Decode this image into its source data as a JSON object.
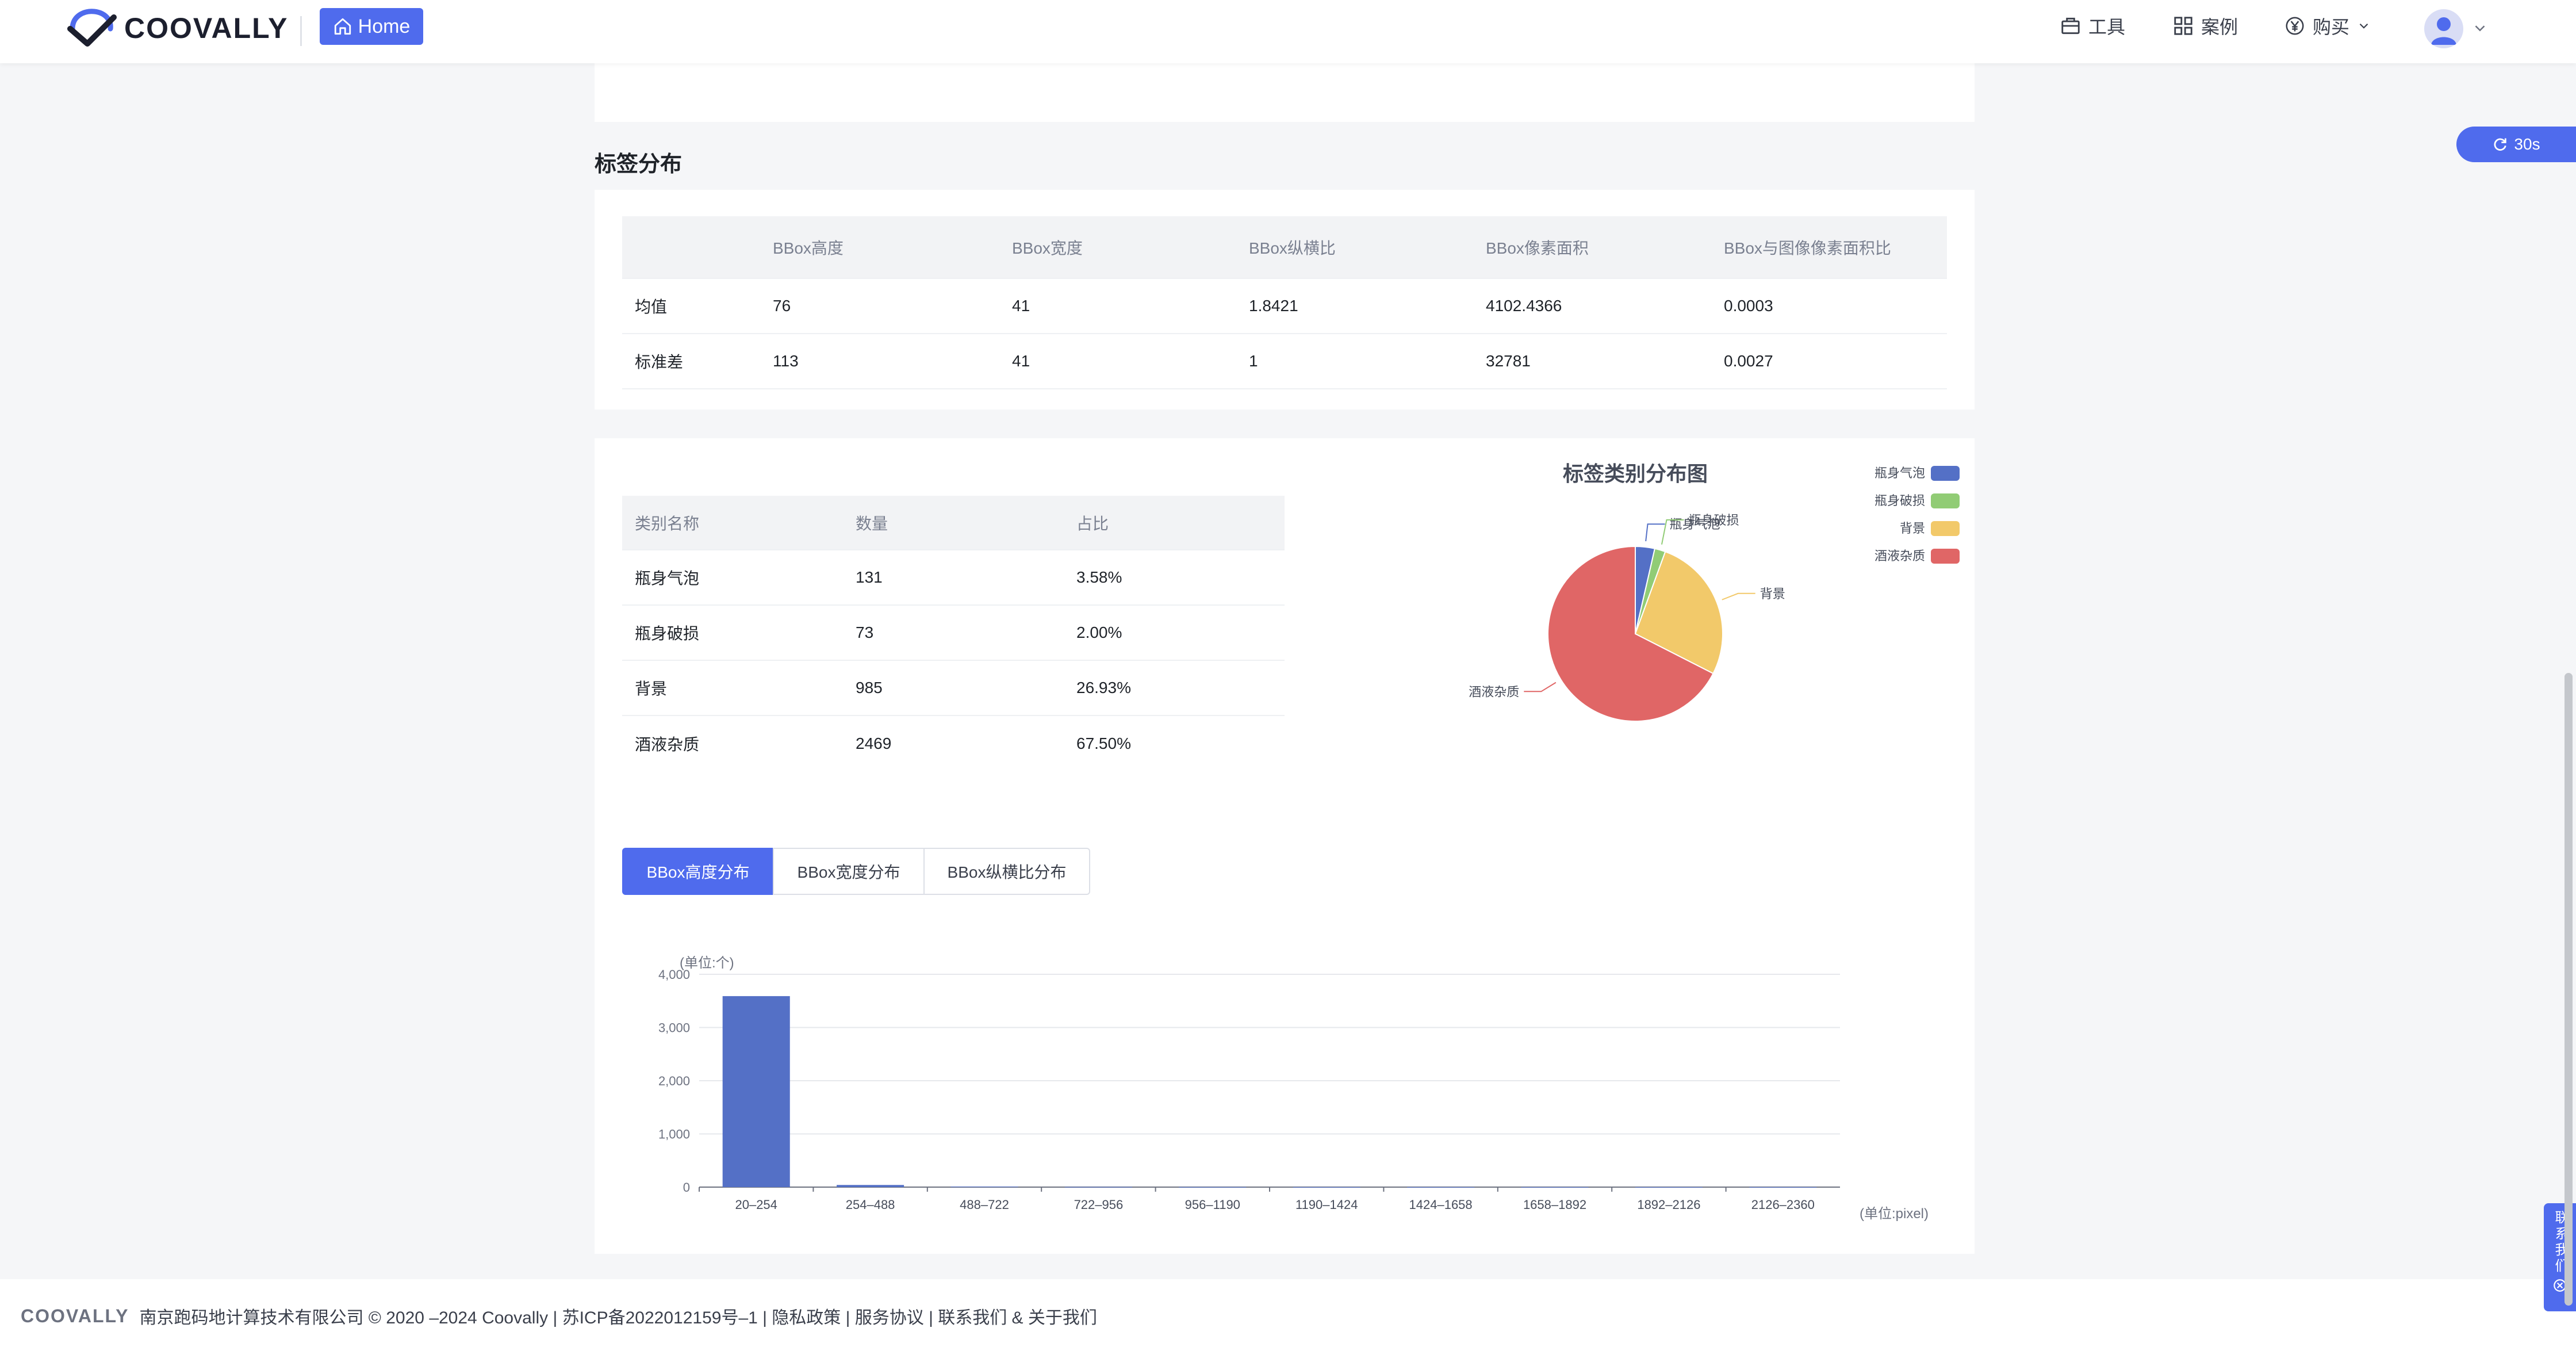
{
  "header": {
    "brand": "COOVALLY",
    "home_label": "Home",
    "nav_tools": "工具",
    "nav_cases": "案例",
    "nav_buy": "购买"
  },
  "refresh": {
    "label": "30s"
  },
  "section": {
    "title": "标签分布"
  },
  "bbox_stats": {
    "columns": [
      "",
      "BBox高度",
      "BBox宽度",
      "BBox纵横比",
      "BBox像素面积",
      "BBox与图像像素面积比"
    ],
    "rows": [
      [
        "均值",
        "76",
        "41",
        "1.8421",
        "4102.4366",
        "0.0003"
      ],
      [
        "标准差",
        "113",
        "41",
        "1",
        "32781",
        "0.0027"
      ]
    ]
  },
  "category_table": {
    "columns": [
      "类别名称",
      "数量",
      "占比"
    ],
    "rows": [
      [
        "瓶身气泡",
        "131",
        "3.58%"
      ],
      [
        "瓶身破损",
        "73",
        "2.00%"
      ],
      [
        "背景",
        "985",
        "26.93%"
      ],
      [
        "酒液杂质",
        "2469",
        "67.50%"
      ]
    ]
  },
  "tabs": [
    "BBox高度分布",
    "BBox宽度分布",
    "BBox纵横比分布"
  ],
  "footer": {
    "brand": "COOVALLY",
    "text": "南京跑码地计算技术有限公司 © 2020 –2024 Coovally | 苏ICP备2022012159号–1 | 隐私政策 | 服务协议 | 联系我们 & 关于我们"
  },
  "contact": {
    "label": "联系我们"
  },
  "colors": {
    "accent": "#4f6bed",
    "bar": "#5470c6",
    "green": "#91cc75",
    "yellow": "#f2c96a",
    "red": "#e06666"
  },
  "chart_data": [
    {
      "type": "pie",
      "title": "标签类别分布图",
      "labels": [
        "瓶身气泡",
        "瓶身破损",
        "背景",
        "酒液杂质"
      ],
      "values": [
        131,
        73,
        985,
        2469
      ],
      "colors": [
        "#5470c6",
        "#91cc75",
        "#f2c96a",
        "#e06666"
      ],
      "legend": "top-right"
    },
    {
      "type": "bar",
      "title": "",
      "ylabel": "(单位:个)",
      "xlabel": "(单位:pixel)",
      "categories": [
        "20–254",
        "254–488",
        "488–722",
        "722–956",
        "956–1190",
        "1190–1424",
        "1424–1658",
        "1658–1892",
        "1892–2126",
        "2126–2360"
      ],
      "values": [
        3590,
        40,
        10,
        4,
        2,
        1,
        1,
        1,
        1,
        1
      ],
      "ylim": [
        0,
        4000
      ],
      "yticks": [
        "0",
        "1,000",
        "2,000",
        "3,000",
        "4,000"
      ],
      "grid": true
    }
  ]
}
